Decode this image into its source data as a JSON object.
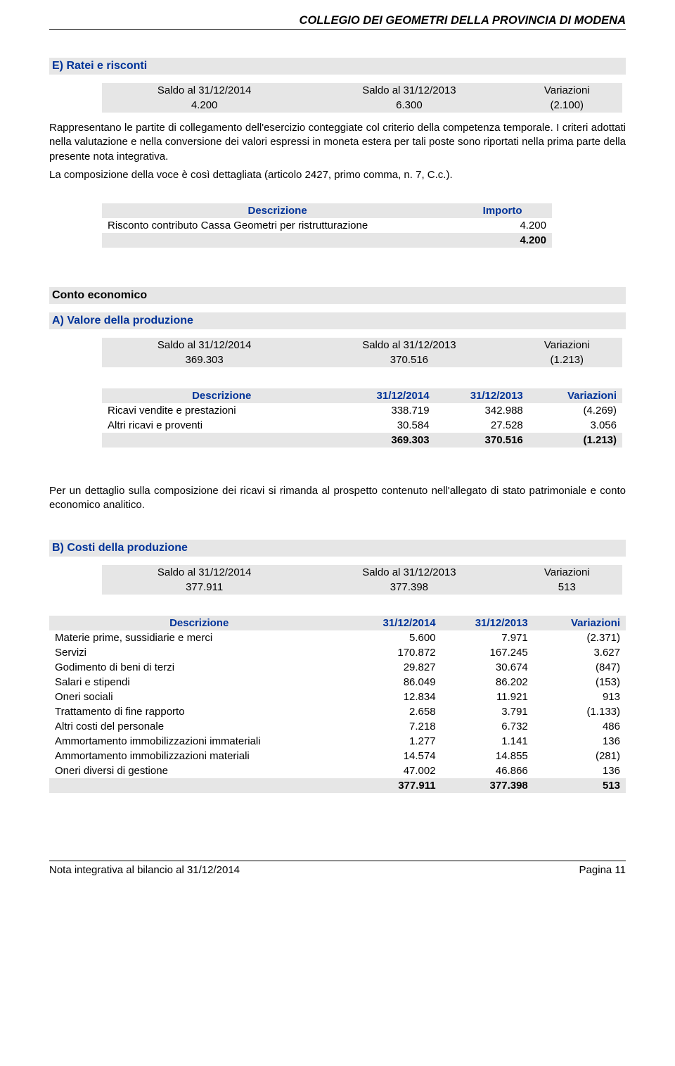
{
  "header": {
    "title": "COLLEGIO DEI GEOMETRI DELLA PROVINCIA DI MODENA"
  },
  "colors": {
    "heading": "#003399",
    "shade": "#e6e6e6",
    "text": "#000000",
    "background": "#ffffff"
  },
  "sectionE": {
    "title": "E) Ratei e risconti",
    "saldo": {
      "h1": "Saldo al 31/12/2014",
      "h2": "Saldo al 31/12/2013",
      "h3": "Variazioni",
      "v1": "4.200",
      "v2": "6.300",
      "v3": "(2.100)"
    },
    "para1": "Rappresentano le partite di collegamento dell'esercizio conteggiate col criterio della competenza temporale. I criteri adottati nella valutazione e nella conversione dei valori espressi in moneta estera per tali poste sono riportati nella prima parte della presente nota integrativa.",
    "para2": "La composizione della voce è così dettagliata (articolo 2427, primo comma, n. 7, C.c.).",
    "descTable": {
      "h1": "Descrizione",
      "h2": "Importo",
      "rows": [
        {
          "d": "Risconto contributo Cassa Geometri per ristrutturazione",
          "v": "4.200"
        }
      ],
      "total": {
        "d": "",
        "v": "4.200"
      }
    }
  },
  "conto": {
    "title": "Conto economico"
  },
  "sectionA": {
    "title": "A) Valore della produzione",
    "saldo": {
      "h1": "Saldo al 31/12/2014",
      "h2": "Saldo al 31/12/2013",
      "h3": "Variazioni",
      "v1": "369.303",
      "v2": "370.516",
      "v3": "(1.213)"
    },
    "table": {
      "h1": "Descrizione",
      "h2": "31/12/2014",
      "h3": "31/12/2013",
      "h4": "Variazioni",
      "rows": [
        {
          "d": "Ricavi vendite e prestazioni",
          "a": "338.719",
          "b": "342.988",
          "c": "(4.269)"
        },
        {
          "d": "Altri ricavi e proventi",
          "a": "30.584",
          "b": "27.528",
          "c": "3.056"
        }
      ],
      "total": {
        "d": "",
        "a": "369.303",
        "b": "370.516",
        "c": "(1.213)"
      }
    },
    "para": "Per un dettaglio sulla composizione dei ricavi si rimanda al prospetto contenuto nell'allegato di stato patrimoniale e conto economico analitico."
  },
  "sectionB": {
    "title": "B) Costi della produzione",
    "saldo": {
      "h1": "Saldo al 31/12/2014",
      "h2": "Saldo al 31/12/2013",
      "h3": "Variazioni",
      "v1": "377.911",
      "v2": "377.398",
      "v3": "513"
    },
    "table": {
      "h1": "Descrizione",
      "h2": "31/12/2014",
      "h3": "31/12/2013",
      "h4": "Variazioni",
      "rows": [
        {
          "d": "Materie prime, sussidiarie e merci",
          "a": "5.600",
          "b": "7.971",
          "c": "(2.371)"
        },
        {
          "d": "Servizi",
          "a": "170.872",
          "b": "167.245",
          "c": "3.627"
        },
        {
          "d": "Godimento di beni di terzi",
          "a": "29.827",
          "b": "30.674",
          "c": "(847)"
        },
        {
          "d": "Salari e stipendi",
          "a": "86.049",
          "b": "86.202",
          "c": "(153)"
        },
        {
          "d": "Oneri sociali",
          "a": "12.834",
          "b": "11.921",
          "c": "913"
        },
        {
          "d": "Trattamento di fine rapporto",
          "a": "2.658",
          "b": "3.791",
          "c": "(1.133)"
        },
        {
          "d": "Altri costi del personale",
          "a": "7.218",
          "b": "6.732",
          "c": "486"
        },
        {
          "d": "Ammortamento immobilizzazioni immateriali",
          "a": "1.277",
          "b": "1.141",
          "c": "136"
        },
        {
          "d": "Ammortamento immobilizzazioni materiali",
          "a": "14.574",
          "b": "14.855",
          "c": "(281)"
        },
        {
          "d": "Oneri diversi di gestione",
          "a": "47.002",
          "b": "46.866",
          "c": "136"
        }
      ],
      "total": {
        "d": "",
        "a": "377.911",
        "b": "377.398",
        "c": "513"
      }
    }
  },
  "footer": {
    "left": "Nota integrativa al bilancio al 31/12/2014",
    "right": "Pagina 11"
  }
}
